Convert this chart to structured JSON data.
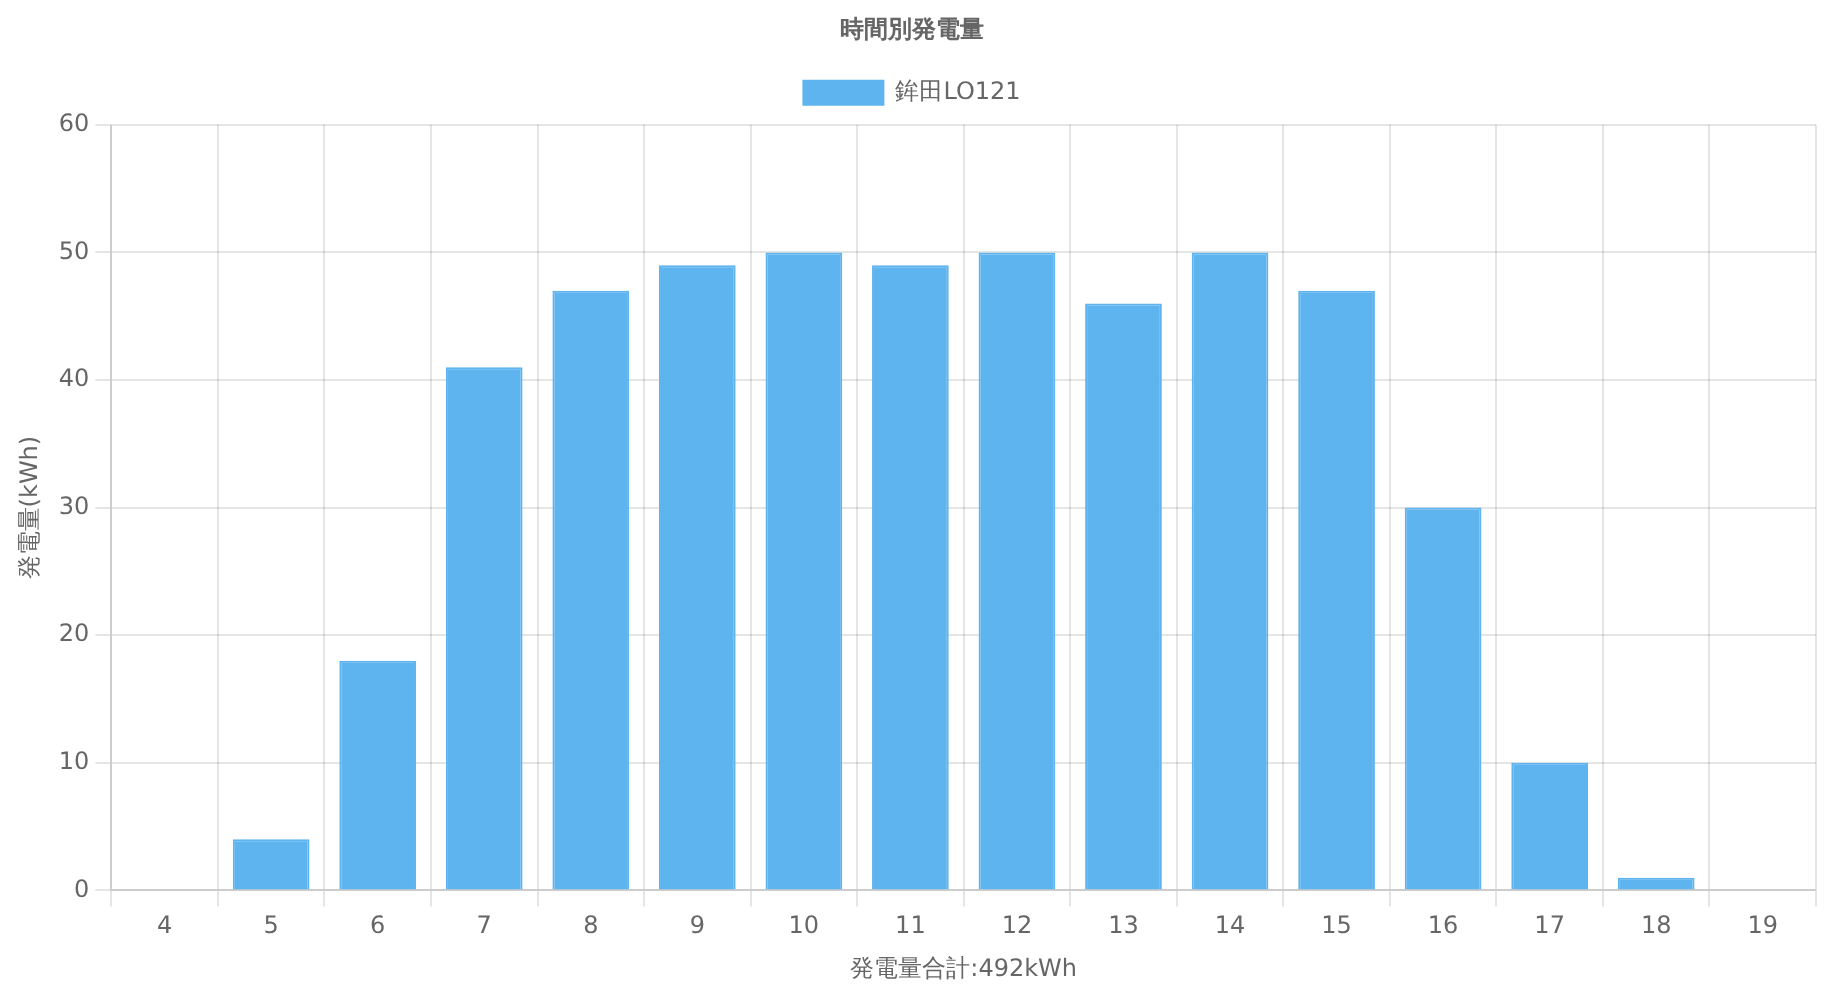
{
  "chart_data": {
    "type": "bar",
    "title": "時間別発電量",
    "xlabel": "発電量合計:492kWh",
    "ylabel": "発電量(kWh)",
    "categories": [
      "4",
      "5",
      "6",
      "7",
      "8",
      "9",
      "10",
      "11",
      "12",
      "13",
      "14",
      "15",
      "16",
      "17",
      "18",
      "19"
    ],
    "series": [
      {
        "name": "鉾田LO121",
        "color": "#5eb4ee",
        "values": [
          0,
          4,
          18,
          41,
          47,
          49,
          50,
          49,
          50,
          46,
          50,
          47,
          30,
          10,
          1,
          0
        ]
      }
    ],
    "ylim": [
      0,
      60
    ],
    "yticks": [
      0,
      10,
      20,
      30,
      40,
      50,
      60
    ],
    "grid": true,
    "legend": "top"
  }
}
